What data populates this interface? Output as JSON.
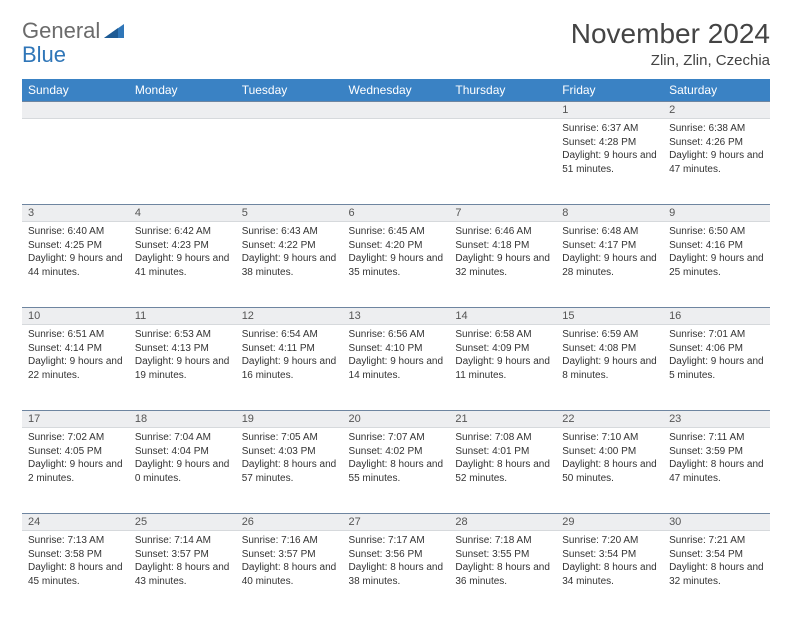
{
  "logo": {
    "word1": "General",
    "word2": "Blue",
    "accent_color": "#2f76b8",
    "gray": "#6b6b6b"
  },
  "header": {
    "month_title": "November 2024",
    "location": "Zlin, Zlin, Czechia"
  },
  "colors": {
    "header_bg": "#3a82c4",
    "header_text": "#ffffff",
    "daynum_bg": "#edeef0",
    "rule": "#6e85a0"
  },
  "weekday_labels": [
    "Sunday",
    "Monday",
    "Tuesday",
    "Wednesday",
    "Thursday",
    "Friday",
    "Saturday"
  ],
  "weeks": [
    {
      "days": [
        {
          "num": "",
          "lines": []
        },
        {
          "num": "",
          "lines": []
        },
        {
          "num": "",
          "lines": []
        },
        {
          "num": "",
          "lines": []
        },
        {
          "num": "",
          "lines": []
        },
        {
          "num": "1",
          "lines": [
            "Sunrise: 6:37 AM",
            "Sunset: 4:28 PM",
            "Daylight: 9 hours and 51 minutes."
          ]
        },
        {
          "num": "2",
          "lines": [
            "Sunrise: 6:38 AM",
            "Sunset: 4:26 PM",
            "Daylight: 9 hours and 47 minutes."
          ]
        }
      ]
    },
    {
      "days": [
        {
          "num": "3",
          "lines": [
            "Sunrise: 6:40 AM",
            "Sunset: 4:25 PM",
            "Daylight: 9 hours and 44 minutes."
          ]
        },
        {
          "num": "4",
          "lines": [
            "Sunrise: 6:42 AM",
            "Sunset: 4:23 PM",
            "Daylight: 9 hours and 41 minutes."
          ]
        },
        {
          "num": "5",
          "lines": [
            "Sunrise: 6:43 AM",
            "Sunset: 4:22 PM",
            "Daylight: 9 hours and 38 minutes."
          ]
        },
        {
          "num": "6",
          "lines": [
            "Sunrise: 6:45 AM",
            "Sunset: 4:20 PM",
            "Daylight: 9 hours and 35 minutes."
          ]
        },
        {
          "num": "7",
          "lines": [
            "Sunrise: 6:46 AM",
            "Sunset: 4:18 PM",
            "Daylight: 9 hours and 32 minutes."
          ]
        },
        {
          "num": "8",
          "lines": [
            "Sunrise: 6:48 AM",
            "Sunset: 4:17 PM",
            "Daylight: 9 hours and 28 minutes."
          ]
        },
        {
          "num": "9",
          "lines": [
            "Sunrise: 6:50 AM",
            "Sunset: 4:16 PM",
            "Daylight: 9 hours and 25 minutes."
          ]
        }
      ]
    },
    {
      "days": [
        {
          "num": "10",
          "lines": [
            "Sunrise: 6:51 AM",
            "Sunset: 4:14 PM",
            "Daylight: 9 hours and 22 minutes."
          ]
        },
        {
          "num": "11",
          "lines": [
            "Sunrise: 6:53 AM",
            "Sunset: 4:13 PM",
            "Daylight: 9 hours and 19 minutes."
          ]
        },
        {
          "num": "12",
          "lines": [
            "Sunrise: 6:54 AM",
            "Sunset: 4:11 PM",
            "Daylight: 9 hours and 16 minutes."
          ]
        },
        {
          "num": "13",
          "lines": [
            "Sunrise: 6:56 AM",
            "Sunset: 4:10 PM",
            "Daylight: 9 hours and 14 minutes."
          ]
        },
        {
          "num": "14",
          "lines": [
            "Sunrise: 6:58 AM",
            "Sunset: 4:09 PM",
            "Daylight: 9 hours and 11 minutes."
          ]
        },
        {
          "num": "15",
          "lines": [
            "Sunrise: 6:59 AM",
            "Sunset: 4:08 PM",
            "Daylight: 9 hours and 8 minutes."
          ]
        },
        {
          "num": "16",
          "lines": [
            "Sunrise: 7:01 AM",
            "Sunset: 4:06 PM",
            "Daylight: 9 hours and 5 minutes."
          ]
        }
      ]
    },
    {
      "days": [
        {
          "num": "17",
          "lines": [
            "Sunrise: 7:02 AM",
            "Sunset: 4:05 PM",
            "Daylight: 9 hours and 2 minutes."
          ]
        },
        {
          "num": "18",
          "lines": [
            "Sunrise: 7:04 AM",
            "Sunset: 4:04 PM",
            "Daylight: 9 hours and 0 minutes."
          ]
        },
        {
          "num": "19",
          "lines": [
            "Sunrise: 7:05 AM",
            "Sunset: 4:03 PM",
            "Daylight: 8 hours and 57 minutes."
          ]
        },
        {
          "num": "20",
          "lines": [
            "Sunrise: 7:07 AM",
            "Sunset: 4:02 PM",
            "Daylight: 8 hours and 55 minutes."
          ]
        },
        {
          "num": "21",
          "lines": [
            "Sunrise: 7:08 AM",
            "Sunset: 4:01 PM",
            "Daylight: 8 hours and 52 minutes."
          ]
        },
        {
          "num": "22",
          "lines": [
            "Sunrise: 7:10 AM",
            "Sunset: 4:00 PM",
            "Daylight: 8 hours and 50 minutes."
          ]
        },
        {
          "num": "23",
          "lines": [
            "Sunrise: 7:11 AM",
            "Sunset: 3:59 PM",
            "Daylight: 8 hours and 47 minutes."
          ]
        }
      ]
    },
    {
      "days": [
        {
          "num": "24",
          "lines": [
            "Sunrise: 7:13 AM",
            "Sunset: 3:58 PM",
            "Daylight: 8 hours and 45 minutes."
          ]
        },
        {
          "num": "25",
          "lines": [
            "Sunrise: 7:14 AM",
            "Sunset: 3:57 PM",
            "Daylight: 8 hours and 43 minutes."
          ]
        },
        {
          "num": "26",
          "lines": [
            "Sunrise: 7:16 AM",
            "Sunset: 3:57 PM",
            "Daylight: 8 hours and 40 minutes."
          ]
        },
        {
          "num": "27",
          "lines": [
            "Sunrise: 7:17 AM",
            "Sunset: 3:56 PM",
            "Daylight: 8 hours and 38 minutes."
          ]
        },
        {
          "num": "28",
          "lines": [
            "Sunrise: 7:18 AM",
            "Sunset: 3:55 PM",
            "Daylight: 8 hours and 36 minutes."
          ]
        },
        {
          "num": "29",
          "lines": [
            "Sunrise: 7:20 AM",
            "Sunset: 3:54 PM",
            "Daylight: 8 hours and 34 minutes."
          ]
        },
        {
          "num": "30",
          "lines": [
            "Sunrise: 7:21 AM",
            "Sunset: 3:54 PM",
            "Daylight: 8 hours and 32 minutes."
          ]
        }
      ]
    }
  ]
}
